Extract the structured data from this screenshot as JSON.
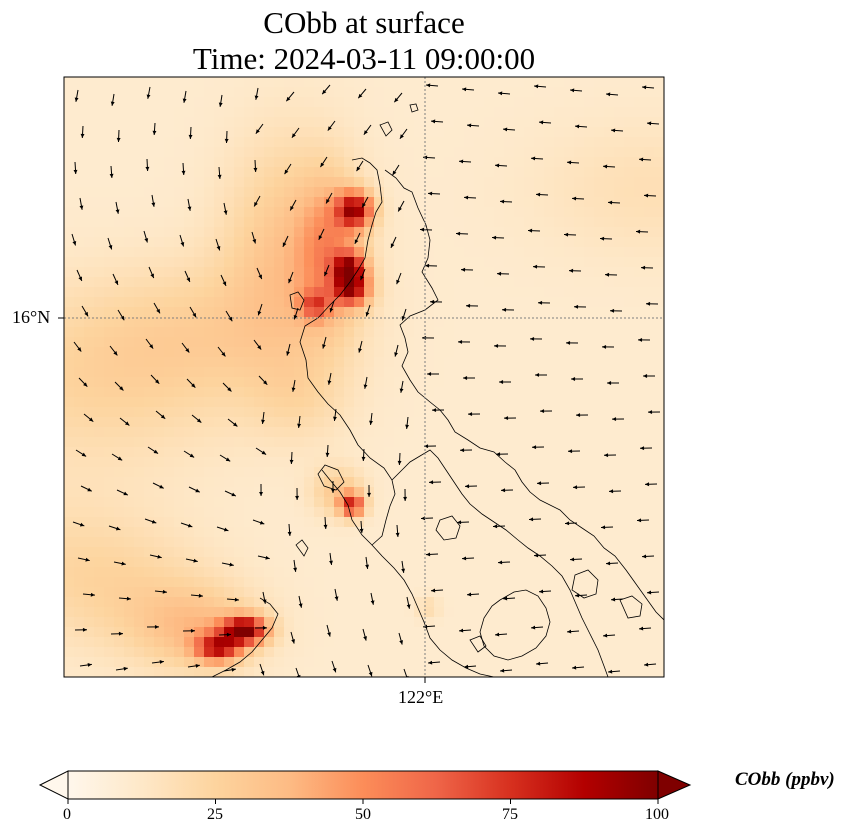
{
  "figure": {
    "title": "CObb at surface",
    "subtitle": "Time: 2024-03-11 09:00:00"
  },
  "map": {
    "lat_label": "16°N",
    "lon_label": "122°E",
    "coastline_color": "#000000",
    "gridline_color": "#7f7f7f",
    "wind_arrow_color": "#000000"
  },
  "colorbar": {
    "title": "CObb (ppbv)",
    "cmap": "OrRd",
    "ticks": [
      "0",
      "25",
      "50",
      "75",
      "100"
    ],
    "range": [
      0,
      100
    ],
    "extend": "both"
  },
  "chart_data": {
    "type": "heatmap",
    "variable": "CObb",
    "units": "ppbv",
    "lat_ticks": [
      "16°N"
    ],
    "lon_ticks": [
      "122°E"
    ],
    "value_range": [
      0,
      100
    ],
    "plumes": [
      {
        "location": "northwest Luzon coast",
        "peak_value": 100
      },
      {
        "location": "west-central Luzon",
        "peak_value": 90
      },
      {
        "location": "southwest corner",
        "peak_value": 100
      }
    ]
  }
}
